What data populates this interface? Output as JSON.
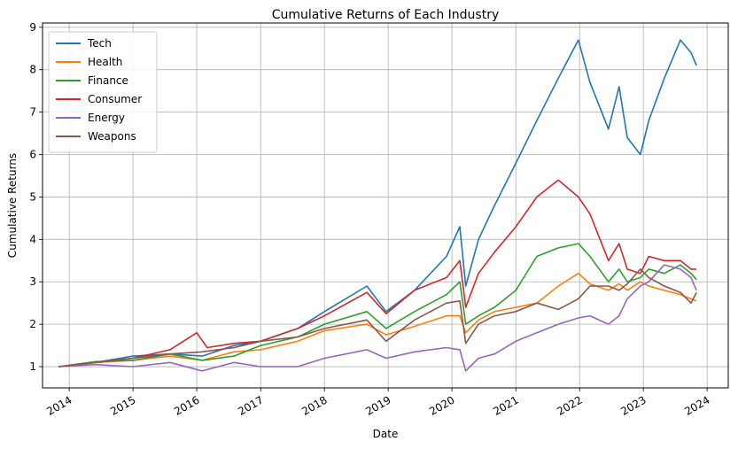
{
  "chart_data": {
    "type": "line",
    "title": "Cumulative Returns of Each Industry",
    "xlabel": "Date",
    "ylabel": "Cumulative Returns",
    "xlim": [
      "2013-08-01",
      "2024-05-01"
    ],
    "ylim": [
      0.5,
      9.1
    ],
    "x_ticks": [
      {
        "date": "2014-01-01",
        "label": "2014"
      },
      {
        "date": "2015-01-01",
        "label": "2015"
      },
      {
        "date": "2016-01-01",
        "label": "2016"
      },
      {
        "date": "2017-01-01",
        "label": "2017"
      },
      {
        "date": "2018-01-01",
        "label": "2018"
      },
      {
        "date": "2019-01-01",
        "label": "2019"
      },
      {
        "date": "2020-01-01",
        "label": "2020"
      },
      {
        "date": "2021-01-01",
        "label": "2021"
      },
      {
        "date": "2022-01-01",
        "label": "2022"
      },
      {
        "date": "2023-01-01",
        "label": "2023"
      },
      {
        "date": "2024-01-01",
        "label": "2024"
      }
    ],
    "y_ticks": [
      1,
      2,
      3,
      4,
      5,
      6,
      7,
      8,
      9
    ],
    "grid": true,
    "legend_position": "top-left",
    "series": [
      {
        "name": "Tech",
        "color": "#1f77b4",
        "points": [
          [
            "2013-11-01",
            1.0
          ],
          [
            "2014-06-01",
            1.1
          ],
          [
            "2015-01-01",
            1.25
          ],
          [
            "2015-08-01",
            1.3
          ],
          [
            "2016-02-01",
            1.25
          ],
          [
            "2016-08-01",
            1.5
          ],
          [
            "2017-01-01",
            1.6
          ],
          [
            "2017-08-01",
            1.9
          ],
          [
            "2018-01-01",
            2.3
          ],
          [
            "2018-09-01",
            2.9
          ],
          [
            "2018-12-20",
            2.3
          ],
          [
            "2019-06-01",
            2.8
          ],
          [
            "2019-12-01",
            3.6
          ],
          [
            "2020-02-15",
            4.3
          ],
          [
            "2020-03-20",
            2.9
          ],
          [
            "2020-06-01",
            4.0
          ],
          [
            "2020-09-01",
            4.8
          ],
          [
            "2021-01-01",
            5.8
          ],
          [
            "2021-05-01",
            6.8
          ],
          [
            "2021-09-01",
            7.8
          ],
          [
            "2021-12-25",
            8.7
          ],
          [
            "2022-03-01",
            7.7
          ],
          [
            "2022-06-15",
            6.6
          ],
          [
            "2022-08-15",
            7.6
          ],
          [
            "2022-10-01",
            6.4
          ],
          [
            "2022-12-15",
            6.0
          ],
          [
            "2023-02-01",
            6.8
          ],
          [
            "2023-05-01",
            7.8
          ],
          [
            "2023-08-01",
            8.7
          ],
          [
            "2023-10-01",
            8.4
          ],
          [
            "2023-11-01",
            8.1
          ]
        ]
      },
      {
        "name": "Health",
        "color": "#ff7f0e",
        "points": [
          [
            "2013-11-01",
            1.0
          ],
          [
            "2014-06-01",
            1.1
          ],
          [
            "2015-01-01",
            1.15
          ],
          [
            "2015-08-01",
            1.25
          ],
          [
            "2016-02-01",
            1.15
          ],
          [
            "2016-08-01",
            1.35
          ],
          [
            "2017-01-01",
            1.4
          ],
          [
            "2017-08-01",
            1.6
          ],
          [
            "2018-01-01",
            1.85
          ],
          [
            "2018-09-01",
            2.0
          ],
          [
            "2018-12-20",
            1.75
          ],
          [
            "2019-06-01",
            1.95
          ],
          [
            "2019-12-01",
            2.2
          ],
          [
            "2020-02-15",
            2.2
          ],
          [
            "2020-03-20",
            1.8
          ],
          [
            "2020-06-01",
            2.1
          ],
          [
            "2020-09-01",
            2.3
          ],
          [
            "2021-01-01",
            2.4
          ],
          [
            "2021-05-01",
            2.5
          ],
          [
            "2021-09-01",
            2.9
          ],
          [
            "2021-12-25",
            3.2
          ],
          [
            "2022-03-01",
            2.95
          ],
          [
            "2022-06-15",
            2.8
          ],
          [
            "2022-08-15",
            2.95
          ],
          [
            "2022-10-01",
            2.8
          ],
          [
            "2022-12-15",
            3.0
          ],
          [
            "2023-02-01",
            2.9
          ],
          [
            "2023-05-01",
            2.8
          ],
          [
            "2023-08-01",
            2.7
          ],
          [
            "2023-10-01",
            2.6
          ],
          [
            "2023-11-01",
            2.55
          ]
        ]
      },
      {
        "name": "Finance",
        "color": "#2ca02c",
        "points": [
          [
            "2013-11-01",
            1.0
          ],
          [
            "2014-06-01",
            1.12
          ],
          [
            "2015-01-01",
            1.15
          ],
          [
            "2015-08-01",
            1.3
          ],
          [
            "2016-02-01",
            1.15
          ],
          [
            "2016-08-01",
            1.25
          ],
          [
            "2017-01-01",
            1.5
          ],
          [
            "2017-08-01",
            1.7
          ],
          [
            "2018-01-01",
            2.0
          ],
          [
            "2018-09-01",
            2.3
          ],
          [
            "2018-12-20",
            1.9
          ],
          [
            "2019-06-01",
            2.3
          ],
          [
            "2019-12-01",
            2.7
          ],
          [
            "2020-02-15",
            3.0
          ],
          [
            "2020-03-20",
            2.0
          ],
          [
            "2020-06-01",
            2.2
          ],
          [
            "2020-09-01",
            2.4
          ],
          [
            "2021-01-01",
            2.8
          ],
          [
            "2021-05-01",
            3.6
          ],
          [
            "2021-09-01",
            3.8
          ],
          [
            "2021-12-25",
            3.9
          ],
          [
            "2022-03-01",
            3.6
          ],
          [
            "2022-06-15",
            3.0
          ],
          [
            "2022-08-15",
            3.3
          ],
          [
            "2022-10-01",
            3.0
          ],
          [
            "2022-12-15",
            3.1
          ],
          [
            "2023-02-01",
            3.3
          ],
          [
            "2023-05-01",
            3.2
          ],
          [
            "2023-08-01",
            3.4
          ],
          [
            "2023-10-01",
            3.2
          ],
          [
            "2023-11-01",
            3.05
          ]
        ]
      },
      {
        "name": "Consumer",
        "color": "#d62728",
        "points": [
          [
            "2013-11-01",
            1.0
          ],
          [
            "2014-06-01",
            1.1
          ],
          [
            "2015-01-01",
            1.2
          ],
          [
            "2015-08-01",
            1.4
          ],
          [
            "2016-01-01",
            1.8
          ],
          [
            "2016-03-01",
            1.45
          ],
          [
            "2016-08-01",
            1.55
          ],
          [
            "2017-01-01",
            1.6
          ],
          [
            "2017-08-01",
            1.9
          ],
          [
            "2018-01-01",
            2.2
          ],
          [
            "2018-09-01",
            2.75
          ],
          [
            "2018-12-20",
            2.25
          ],
          [
            "2019-06-01",
            2.8
          ],
          [
            "2019-12-01",
            3.1
          ],
          [
            "2020-02-15",
            3.5
          ],
          [
            "2020-03-20",
            2.4
          ],
          [
            "2020-06-01",
            3.2
          ],
          [
            "2020-09-01",
            3.7
          ],
          [
            "2021-01-01",
            4.3
          ],
          [
            "2021-05-01",
            5.0
          ],
          [
            "2021-09-01",
            5.4
          ],
          [
            "2021-12-25",
            5.0
          ],
          [
            "2022-03-01",
            4.6
          ],
          [
            "2022-06-15",
            3.5
          ],
          [
            "2022-08-15",
            3.9
          ],
          [
            "2022-10-01",
            3.3
          ],
          [
            "2022-12-15",
            3.2
          ],
          [
            "2023-02-01",
            3.6
          ],
          [
            "2023-05-01",
            3.5
          ],
          [
            "2023-08-01",
            3.5
          ],
          [
            "2023-10-01",
            3.3
          ],
          [
            "2023-11-01",
            3.3
          ]
        ]
      },
      {
        "name": "Energy",
        "color": "#9467bd",
        "points": [
          [
            "2013-11-01",
            1.0
          ],
          [
            "2014-06-01",
            1.05
          ],
          [
            "2015-01-01",
            1.0
          ],
          [
            "2015-08-01",
            1.1
          ],
          [
            "2016-02-01",
            0.9
          ],
          [
            "2016-08-01",
            1.1
          ],
          [
            "2017-01-01",
            1.0
          ],
          [
            "2017-08-01",
            1.0
          ],
          [
            "2018-01-01",
            1.2
          ],
          [
            "2018-09-01",
            1.4
          ],
          [
            "2018-12-20",
            1.2
          ],
          [
            "2019-06-01",
            1.35
          ],
          [
            "2019-12-01",
            1.45
          ],
          [
            "2020-02-15",
            1.4
          ],
          [
            "2020-03-20",
            0.9
          ],
          [
            "2020-06-01",
            1.2
          ],
          [
            "2020-09-01",
            1.3
          ],
          [
            "2021-01-01",
            1.6
          ],
          [
            "2021-05-01",
            1.8
          ],
          [
            "2021-09-01",
            2.0
          ],
          [
            "2021-12-25",
            2.15
          ],
          [
            "2022-03-01",
            2.2
          ],
          [
            "2022-06-15",
            2.0
          ],
          [
            "2022-08-15",
            2.2
          ],
          [
            "2022-10-01",
            2.6
          ],
          [
            "2022-12-15",
            2.9
          ],
          [
            "2023-02-01",
            3.0
          ],
          [
            "2023-05-01",
            3.4
          ],
          [
            "2023-08-01",
            3.3
          ],
          [
            "2023-10-01",
            3.1
          ],
          [
            "2023-11-01",
            2.8
          ]
        ]
      },
      {
        "name": "Weapons",
        "color": "#8c564b",
        "points": [
          [
            "2013-11-01",
            1.0
          ],
          [
            "2014-06-01",
            1.1
          ],
          [
            "2015-01-01",
            1.2
          ],
          [
            "2015-08-01",
            1.3
          ],
          [
            "2016-02-01",
            1.35
          ],
          [
            "2016-08-01",
            1.45
          ],
          [
            "2017-01-01",
            1.6
          ],
          [
            "2017-08-01",
            1.7
          ],
          [
            "2018-01-01",
            1.9
          ],
          [
            "2018-09-01",
            2.1
          ],
          [
            "2018-12-20",
            1.6
          ],
          [
            "2019-06-01",
            2.1
          ],
          [
            "2019-12-01",
            2.5
          ],
          [
            "2020-02-15",
            2.55
          ],
          [
            "2020-03-20",
            1.55
          ],
          [
            "2020-06-01",
            2.0
          ],
          [
            "2020-09-01",
            2.2
          ],
          [
            "2021-01-01",
            2.3
          ],
          [
            "2021-05-01",
            2.5
          ],
          [
            "2021-09-01",
            2.35
          ],
          [
            "2021-12-25",
            2.6
          ],
          [
            "2022-03-01",
            2.9
          ],
          [
            "2022-06-15",
            2.9
          ],
          [
            "2022-08-15",
            2.8
          ],
          [
            "2022-10-01",
            2.95
          ],
          [
            "2022-12-15",
            3.3
          ],
          [
            "2023-02-01",
            3.1
          ],
          [
            "2023-05-01",
            2.9
          ],
          [
            "2023-08-01",
            2.75
          ],
          [
            "2023-10-01",
            2.5
          ],
          [
            "2023-11-01",
            2.75
          ]
        ]
      }
    ]
  }
}
